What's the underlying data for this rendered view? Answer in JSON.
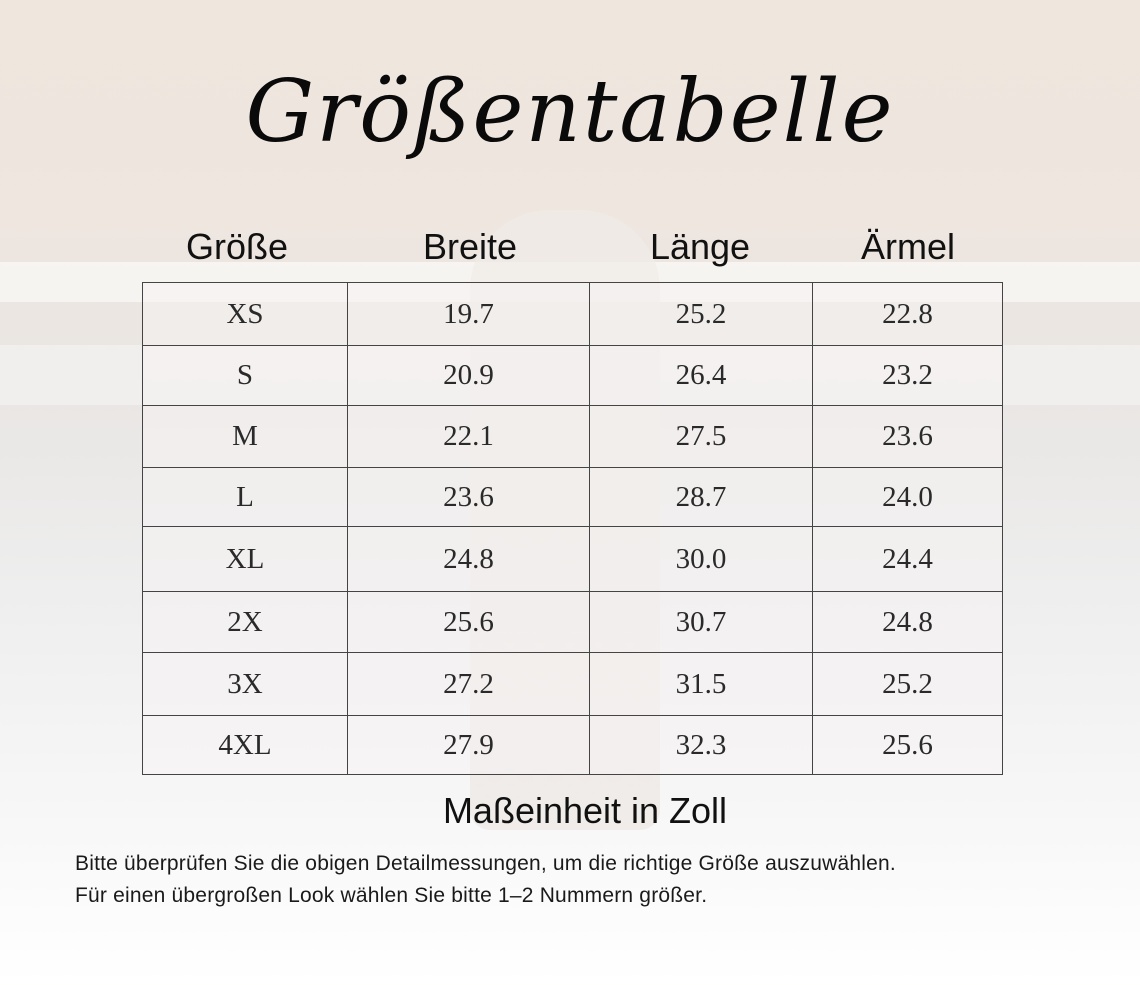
{
  "title": "Größentabelle",
  "headers": [
    "Größe",
    "Breite",
    "Länge",
    "Ärmel"
  ],
  "rows": [
    [
      "XS",
      "19.7",
      "25.2",
      "22.8"
    ],
    [
      "S",
      "20.9",
      "26.4",
      "23.2"
    ],
    [
      "M",
      "22.1",
      "27.5",
      "23.6"
    ],
    [
      "L",
      "23.6",
      "28.7",
      "24.0"
    ],
    [
      "XL",
      "24.8",
      "30.0",
      "24.4"
    ],
    [
      "2X",
      "25.6",
      "30.7",
      "24.8"
    ],
    [
      "3X",
      "27.2",
      "31.5",
      "25.2"
    ],
    [
      "4XL",
      "27.9",
      "32.3",
      "25.6"
    ]
  ],
  "unit": "Maßeinheit in Zoll",
  "notes": [
    "Bitte überprüfen Sie die obigen Detailmessungen, um die richtige Größe auszuwählen.",
    "Für einen übergroßen Look wählen Sie bitte 1–2 Nummern größer."
  ]
}
